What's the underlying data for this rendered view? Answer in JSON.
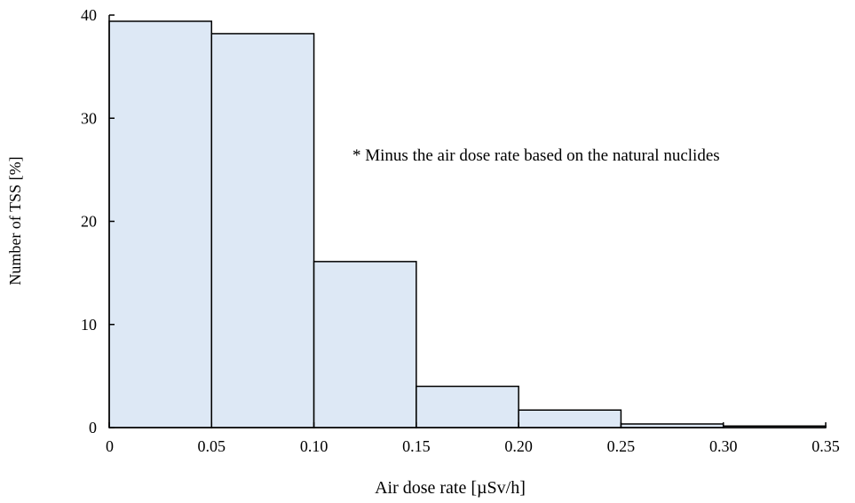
{
  "chart_data": {
    "type": "bar",
    "xlabel": "Air dose rate [µSv/h]",
    "ylabel": "Number of TSS [%]",
    "annotation": "* Minus the air dose rate based on the natural nuclides",
    "bin_edges": [
      0,
      0.05,
      0.1,
      0.15,
      0.2,
      0.25,
      0.3,
      0.35
    ],
    "x_tick_labels": [
      "0",
      "0.05",
      "0.10",
      "0.15",
      "0.20",
      "0.25",
      "0.30",
      "0.35"
    ],
    "y_ticks": [
      0,
      10,
      20,
      30,
      40
    ],
    "y_tick_labels": [
      "0",
      "10",
      "20",
      "30",
      "40"
    ],
    "values": [
      39.4,
      38.2,
      16.1,
      4.0,
      1.7,
      0.35,
      0.15
    ],
    "xlim": [
      0,
      0.35
    ],
    "ylim": [
      0,
      40
    ],
    "grid": false,
    "bar_fill": "#dde8f5",
    "bar_stroke": "#000000"
  }
}
